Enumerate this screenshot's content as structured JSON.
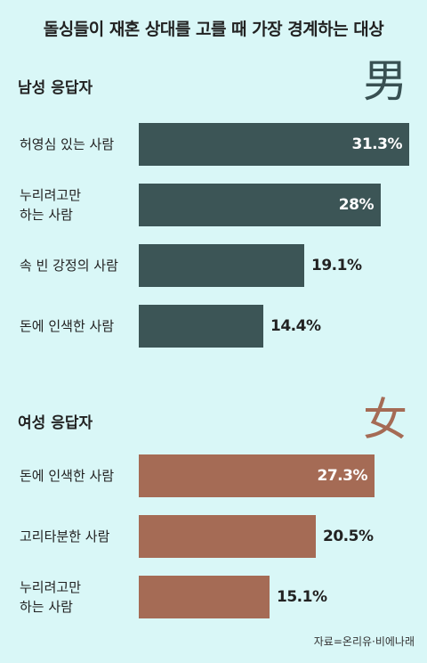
{
  "title": "돌싱들이 재혼 상대를 고를 때 가장 경계하는 대상",
  "source": "자료=온리유·비에나래",
  "chart_data": [
    {
      "type": "bar",
      "orientation": "horizontal",
      "title": "남성 응답자",
      "symbol": "男",
      "color": "#3c5556",
      "unit": "%",
      "categories": [
        "허영심 있는 사람",
        "누리려고만\n하는 사람",
        "속 빈 강정의 사람",
        "돈에 인색한 사람"
      ],
      "values": [
        31.3,
        28,
        19.1,
        14.4
      ],
      "value_labels": [
        "31.3%",
        "28%",
        "19.1%",
        "14.4%"
      ]
    },
    {
      "type": "bar",
      "orientation": "horizontal",
      "title": "여성 응답자",
      "symbol": "女",
      "color": "#a56b55",
      "unit": "%",
      "categories": [
        "돈에 인색한 사람",
        "고리타분한 사람",
        "누리려고만\n하는 사람"
      ],
      "values": [
        27.3,
        20.5,
        15.1
      ],
      "value_labels": [
        "27.3%",
        "20.5%",
        "15.1%"
      ]
    }
  ]
}
